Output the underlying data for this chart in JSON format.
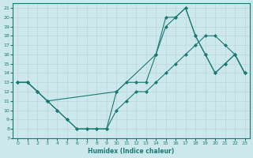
{
  "title": "",
  "xlabel": "Humidex (Indice chaleur)",
  "ylabel": "",
  "bg_color": "#cce8ec",
  "line_color": "#1a7a72",
  "grid_color": "#b8d8dc",
  "xlim": [
    -0.5,
    23.5
  ],
  "ylim": [
    7,
    21.5
  ],
  "xticks": [
    0,
    1,
    2,
    3,
    4,
    5,
    6,
    7,
    8,
    9,
    10,
    11,
    12,
    13,
    14,
    15,
    16,
    17,
    18,
    19,
    20,
    21,
    22,
    23
  ],
  "yticks": [
    7,
    8,
    9,
    10,
    11,
    12,
    13,
    14,
    15,
    16,
    17,
    18,
    19,
    20,
    21
  ],
  "line1_x": [
    0,
    1,
    2,
    3,
    4,
    5,
    6,
    7,
    8,
    9,
    10,
    11,
    12,
    13,
    14,
    15,
    16,
    17,
    18,
    19,
    20,
    21,
    22,
    23
  ],
  "line1_y": [
    13,
    13,
    12,
    11,
    10,
    9,
    8,
    8,
    8,
    8,
    10,
    11,
    12,
    12,
    13,
    14,
    15,
    16,
    17,
    18,
    18,
    17,
    16,
    14
  ],
  "line2_x": [
    0,
    1,
    2,
    3,
    4,
    5,
    6,
    7,
    8,
    9,
    10,
    11,
    12,
    13,
    14,
    15,
    16,
    17,
    18,
    19,
    20,
    21,
    22,
    23
  ],
  "line2_y": [
    13,
    13,
    12,
    11,
    10,
    9,
    8,
    8,
    8,
    8,
    12,
    13,
    13,
    13,
    16,
    19,
    20,
    21,
    18,
    16,
    14,
    15,
    16,
    14
  ],
  "line3_x": [
    0,
    1,
    2,
    3,
    10,
    14,
    15,
    16,
    17,
    18,
    19,
    20,
    21,
    22,
    23
  ],
  "line3_y": [
    13,
    13,
    12,
    11,
    12,
    16,
    20,
    20,
    21,
    18,
    16,
    14,
    15,
    16,
    14
  ],
  "marker": "D",
  "markersize": 2.5,
  "linewidth": 0.8
}
